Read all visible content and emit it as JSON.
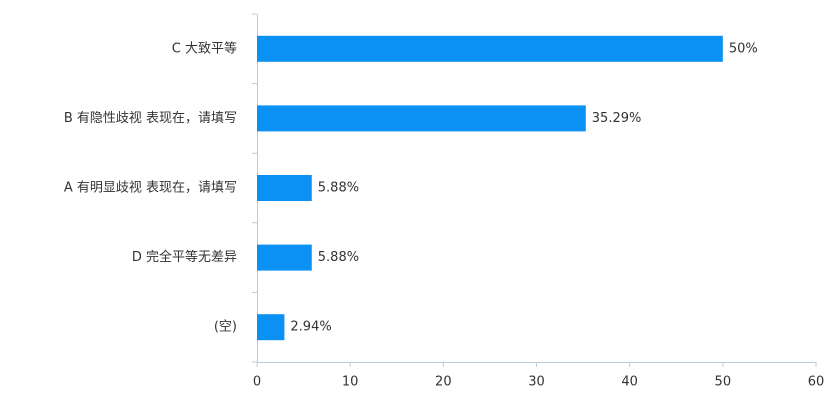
{
  "chart_data": {
    "type": "bar",
    "orientation": "horizontal",
    "categories": [
      "C 大致平等",
      "B 有隐性歧视 表现在，请填写",
      "A 有明显歧视 表现在，请填写",
      "D 完全平等无差异",
      "(空)"
    ],
    "values": [
      50,
      35.29,
      5.88,
      5.88,
      2.94
    ],
    "value_labels": [
      "50%",
      "35.29%",
      "5.88%",
      "5.88%",
      "2.94%"
    ],
    "color": "#0a91f3",
    "xlim": [
      0,
      60
    ],
    "xticks": [
      0,
      10,
      20,
      30,
      40,
      50,
      60
    ],
    "grid": false
  }
}
